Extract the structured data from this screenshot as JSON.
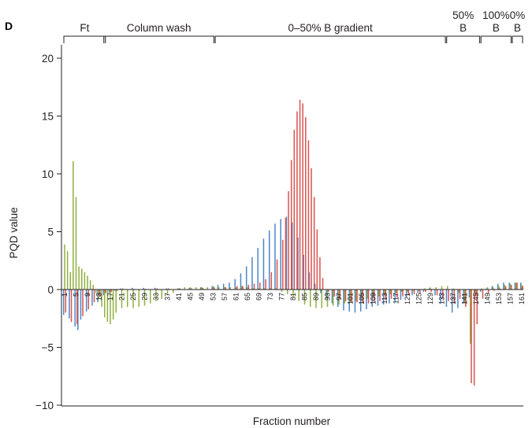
{
  "panel_label": "D",
  "chart_data": {
    "type": "bar",
    "xlabel": "Fraction number",
    "ylabel": "PQD value",
    "ylim": [
      -10,
      21
    ],
    "yticks": [
      -10,
      -5,
      0,
      5,
      10,
      15,
      20
    ],
    "xlim": [
      1,
      161
    ],
    "xtick_labels": [
      1,
      5,
      9,
      13,
      17,
      21,
      25,
      29,
      33,
      37,
      41,
      45,
      49,
      53,
      57,
      61,
      65,
      69,
      73,
      77,
      81,
      85,
      89,
      93,
      97,
      101,
      105,
      109,
      113,
      117,
      121,
      125,
      129,
      133,
      137,
      141,
      145,
      149,
      153,
      157,
      161
    ],
    "grid": false,
    "legend": "none",
    "regions": [
      {
        "label_lines": [
          "Ft"
        ],
        "start": 1,
        "end": 15
      },
      {
        "label_lines": [
          "Column wash"
        ],
        "start": 15,
        "end": 53
      },
      {
        "label_lines": [
          "0–50% B gradient"
        ],
        "start": 54,
        "end": 134
      },
      {
        "label_lines": [
          "50%",
          "B"
        ],
        "start": 135,
        "end": 146
      },
      {
        "label_lines": [
          "100%",
          "B"
        ],
        "start": 147,
        "end": 157
      },
      {
        "label_lines": [
          "0%",
          "B"
        ],
        "start": 158,
        "end": 161
      }
    ],
    "series": [
      {
        "color": "#4f86c6",
        "points": [
          [
            1,
            -2.2
          ],
          [
            3,
            -2.5
          ],
          [
            5,
            -3.2
          ],
          [
            6,
            -3.5
          ],
          [
            7,
            -2.6
          ],
          [
            9,
            -1.9
          ],
          [
            11,
            -1.4
          ],
          [
            13,
            -1.1
          ],
          [
            15,
            -0.5
          ],
          [
            17,
            -0.3
          ],
          [
            19,
            -0.1
          ],
          [
            21,
            0.1
          ],
          [
            25,
            0.15
          ],
          [
            29,
            0.15
          ],
          [
            33,
            0.15
          ],
          [
            37,
            0.1
          ],
          [
            41,
            0.1
          ],
          [
            45,
            0.15
          ],
          [
            49,
            0.2
          ],
          [
            53,
            0.3
          ],
          [
            55,
            0.4
          ],
          [
            57,
            0.5
          ],
          [
            59,
            0.6
          ],
          [
            61,
            0.9
          ],
          [
            63,
            1.4
          ],
          [
            65,
            2.0
          ],
          [
            67,
            2.8
          ],
          [
            69,
            3.6
          ],
          [
            71,
            4.4
          ],
          [
            73,
            5.1
          ],
          [
            75,
            5.7
          ],
          [
            77,
            6.1
          ],
          [
            79,
            6.3
          ],
          [
            81,
            5.8
          ],
          [
            83,
            4.5
          ],
          [
            85,
            3.0
          ],
          [
            87,
            1.5
          ],
          [
            89,
            0.5
          ],
          [
            91,
            -0.3
          ],
          [
            93,
            -0.8
          ],
          [
            95,
            -1.2
          ],
          [
            97,
            -1.5
          ],
          [
            99,
            -1.8
          ],
          [
            101,
            -1.9
          ],
          [
            103,
            -2.0
          ],
          [
            105,
            -1.9
          ],
          [
            107,
            -1.7
          ],
          [
            109,
            -1.5
          ],
          [
            111,
            -1.4
          ],
          [
            113,
            -1.3
          ],
          [
            115,
            -1.2
          ],
          [
            117,
            -1.1
          ],
          [
            119,
            -0.9
          ],
          [
            121,
            -0.7
          ],
          [
            123,
            -0.5
          ],
          [
            125,
            -0.3
          ],
          [
            127,
            -0.2
          ],
          [
            129,
            0.1
          ],
          [
            131,
            -0.5
          ],
          [
            133,
            -1.2
          ],
          [
            135,
            -1.5
          ],
          [
            137,
            -2.0
          ],
          [
            139,
            -1.6
          ],
          [
            141,
            -1.2
          ],
          [
            143,
            -0.7
          ],
          [
            145,
            -0.4
          ],
          [
            147,
            -0.2
          ],
          [
            149,
            0.1
          ],
          [
            151,
            0.3
          ],
          [
            153,
            0.5
          ],
          [
            155,
            0.6
          ],
          [
            157,
            0.6
          ],
          [
            159,
            0.6
          ],
          [
            161,
            0.6
          ]
        ]
      },
      {
        "color": "#8fb040",
        "points": [
          [
            1,
            3.9
          ],
          [
            2,
            3.3
          ],
          [
            3,
            1.5
          ],
          [
            4,
            11.1
          ],
          [
            5,
            8.0
          ],
          [
            6,
            2.0
          ],
          [
            7,
            1.8
          ],
          [
            8,
            1.5
          ],
          [
            9,
            1.2
          ],
          [
            10,
            0.8
          ],
          [
            11,
            0.4
          ],
          [
            12,
            -0.3
          ],
          [
            13,
            -0.8
          ],
          [
            14,
            -1.5
          ],
          [
            15,
            -2.4
          ],
          [
            16,
            -2.8
          ],
          [
            17,
            -3.0
          ],
          [
            18,
            -2.6
          ],
          [
            19,
            -2.0
          ],
          [
            21,
            -1.6
          ],
          [
            23,
            -1.5
          ],
          [
            25,
            -1.6
          ],
          [
            27,
            -1.5
          ],
          [
            29,
            -1.4
          ],
          [
            31,
            -1.2
          ],
          [
            33,
            -1.0
          ],
          [
            35,
            -0.8
          ],
          [
            37,
            -0.5
          ],
          [
            39,
            -0.3
          ],
          [
            41,
            0.1
          ],
          [
            43,
            0.2
          ],
          [
            45,
            0.2
          ],
          [
            47,
            0.2
          ],
          [
            49,
            0.2
          ],
          [
            51,
            0.2
          ],
          [
            53,
            0.3
          ],
          [
            55,
            0.2
          ],
          [
            57,
            0.2
          ],
          [
            59,
            0.2
          ],
          [
            61,
            0.2
          ],
          [
            63,
            0.3
          ],
          [
            65,
            0.2
          ],
          [
            67,
            0.1
          ],
          [
            69,
            0.1
          ],
          [
            71,
            0.1
          ],
          [
            73,
            0.1
          ],
          [
            75,
            0.1
          ],
          [
            77,
            -0.2
          ],
          [
            79,
            -0.4
          ],
          [
            81,
            -0.7
          ],
          [
            83,
            -1.0
          ],
          [
            85,
            -1.3
          ],
          [
            87,
            -1.5
          ],
          [
            89,
            -1.6
          ],
          [
            91,
            -1.6
          ],
          [
            93,
            -1.5
          ],
          [
            95,
            -1.4
          ],
          [
            97,
            -1.3
          ],
          [
            99,
            -1.2
          ],
          [
            101,
            -1.1
          ],
          [
            103,
            -1.0
          ],
          [
            105,
            -0.9
          ],
          [
            107,
            -0.8
          ],
          [
            109,
            -0.7
          ],
          [
            111,
            -0.6
          ],
          [
            113,
            -0.5
          ],
          [
            115,
            -0.4
          ],
          [
            117,
            -0.3
          ],
          [
            119,
            -0.2
          ],
          [
            121,
            -0.2
          ],
          [
            123,
            -0.1
          ],
          [
            125,
            -0.1
          ],
          [
            127,
            0.1
          ],
          [
            129,
            0.2
          ],
          [
            131,
            0.2
          ],
          [
            133,
            0.3
          ],
          [
            135,
            0.3
          ],
          [
            137,
            0.1
          ],
          [
            139,
            -0.3
          ],
          [
            141,
            -1.2
          ],
          [
            143,
            -4.7
          ],
          [
            145,
            -0.5
          ],
          [
            147,
            0.1
          ],
          [
            149,
            0.2
          ],
          [
            151,
            0.2
          ],
          [
            153,
            0.3
          ],
          [
            155,
            0.4
          ],
          [
            157,
            0.5
          ],
          [
            159,
            0.6
          ],
          [
            161,
            0.4
          ]
        ]
      },
      {
        "color": "#d9534f",
        "points": [
          [
            1,
            -2.0
          ],
          [
            3,
            -2.8
          ],
          [
            5,
            -3.0
          ],
          [
            7,
            -2.3
          ],
          [
            9,
            -1.7
          ],
          [
            11,
            -1.1
          ],
          [
            13,
            -0.6
          ],
          [
            15,
            -0.3
          ],
          [
            17,
            -0.2
          ],
          [
            19,
            -0.1
          ],
          [
            21,
            0.1
          ],
          [
            25,
            0.05
          ],
          [
            29,
            0.05
          ],
          [
            33,
            0.1
          ],
          [
            37,
            0.1
          ],
          [
            41,
            0.1
          ],
          [
            45,
            0.1
          ],
          [
            49,
            0.15
          ],
          [
            53,
            0.2
          ],
          [
            57,
            0.2
          ],
          [
            61,
            0.3
          ],
          [
            63,
            0.3
          ],
          [
            65,
            0.4
          ],
          [
            67,
            0.5
          ],
          [
            69,
            0.6
          ],
          [
            71,
            0.9
          ],
          [
            73,
            1.5
          ],
          [
            75,
            2.6
          ],
          [
            77,
            4.3
          ],
          [
            78,
            6.2
          ],
          [
            79,
            8.5
          ],
          [
            80,
            11.2
          ],
          [
            81,
            13.8
          ],
          [
            82,
            15.4
          ],
          [
            83,
            16.4
          ],
          [
            84,
            16.1
          ],
          [
            85,
            14.9
          ],
          [
            86,
            12.9
          ],
          [
            87,
            10.5
          ],
          [
            88,
            8.0
          ],
          [
            89,
            5.2
          ],
          [
            90,
            2.8
          ],
          [
            91,
            1.0
          ],
          [
            93,
            -0.2
          ],
          [
            95,
            -0.6
          ],
          [
            97,
            -0.8
          ],
          [
            99,
            -1.0
          ],
          [
            101,
            -1.1
          ],
          [
            103,
            -1.1
          ],
          [
            105,
            -1.2
          ],
          [
            107,
            -1.2
          ],
          [
            109,
            -1.1
          ],
          [
            111,
            -1.0
          ],
          [
            113,
            -0.9
          ],
          [
            115,
            -0.8
          ],
          [
            117,
            -0.7
          ],
          [
            119,
            -0.6
          ],
          [
            121,
            -0.5
          ],
          [
            123,
            -0.4
          ],
          [
            125,
            -0.3
          ],
          [
            127,
            -0.2
          ],
          [
            129,
            -0.2
          ],
          [
            131,
            -0.5
          ],
          [
            133,
            -0.8
          ],
          [
            135,
            -1.0
          ],
          [
            137,
            -1.2
          ],
          [
            139,
            -0.8
          ],
          [
            141,
            -1.5
          ],
          [
            143,
            -8.1
          ],
          [
            144,
            -8.3
          ],
          [
            145,
            -3.0
          ],
          [
            147,
            -0.8
          ],
          [
            149,
            -0.3
          ],
          [
            151,
            -0.1
          ],
          [
            153,
            0.1
          ],
          [
            155,
            0.3
          ],
          [
            157,
            0.4
          ],
          [
            159,
            0.6
          ],
          [
            161,
            0.3
          ]
        ]
      }
    ]
  }
}
